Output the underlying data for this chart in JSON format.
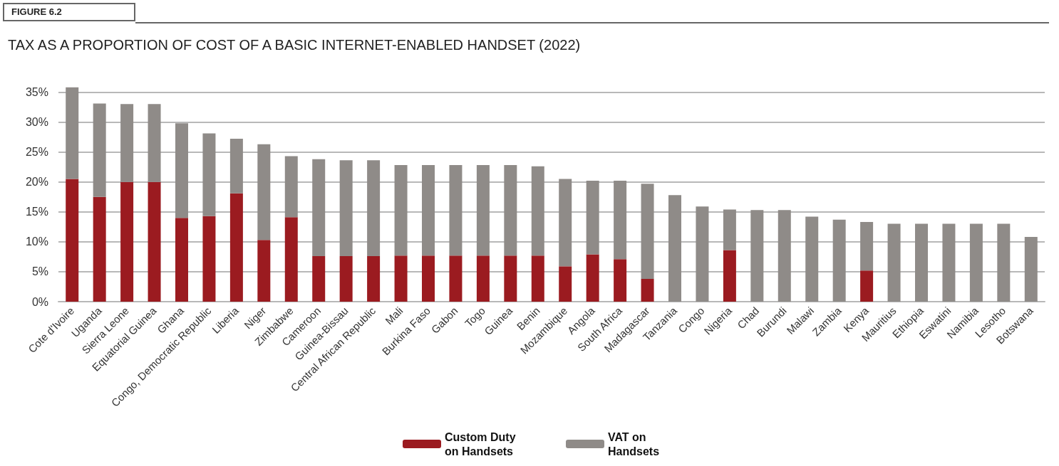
{
  "chart_data": {
    "type": "bar",
    "stacked": true,
    "title": "TAX AS A PROPORTION OF COST OF A BASIC INTERNET-ENABLED HANDSET (2022)",
    "annotations": [
      "FIGURE 6.2"
    ],
    "categories": [
      "Cote d'Ivoire",
      "Uganda",
      "Sierra Leone",
      "Equatorial Guinea",
      "Ghana",
      "Congo, Democratic Republic",
      "Liberia",
      "Niger",
      "Zimbabwe",
      "Cameroon",
      "Guinea-Bissau",
      "Central African Republic",
      "Mali",
      "Burkina Faso",
      "Gabon",
      "Togo",
      "Guinea",
      "Benin",
      "Mozambique",
      "Angola",
      "South Africa",
      "Madagascar",
      "Tanzania",
      "Congo",
      "Nigeria",
      "Chad",
      "Burundi",
      "Malawi",
      "Zambia",
      "Kenya",
      "Mauritius",
      "Ethiopia",
      "Eswatini",
      "Namibia",
      "Lesotho",
      "Botswana"
    ],
    "series": [
      {
        "name": "Custom Duty on Handsets",
        "color": "#9b1b20",
        "values": [
          20.5,
          17.5,
          20.0,
          20.0,
          14.0,
          14.3,
          18.1,
          10.3,
          14.1,
          7.6,
          7.6,
          7.6,
          7.7,
          7.7,
          7.7,
          7.7,
          7.7,
          7.7,
          5.9,
          7.9,
          7.1,
          3.8,
          0,
          0,
          8.6,
          0,
          0,
          0,
          0,
          5.2,
          0,
          0,
          0,
          0,
          0,
          0
        ]
      },
      {
        "name": "VAT on Handsets",
        "color": "#8f8b88",
        "values": [
          15.3,
          15.6,
          13.0,
          13.0,
          15.8,
          13.8,
          9.1,
          16.0,
          10.2,
          16.2,
          16.0,
          16.0,
          15.1,
          15.1,
          15.1,
          15.1,
          15.1,
          14.9,
          14.6,
          12.3,
          13.1,
          15.9,
          17.8,
          15.9,
          6.8,
          15.3,
          15.3,
          14.2,
          13.7,
          8.1,
          13.0,
          13.0,
          13.0,
          13.0,
          13.0,
          10.8
        ]
      }
    ],
    "ylim": [
      0,
      36
    ],
    "yticks": [
      {
        "value": 0,
        "label": "0%"
      },
      {
        "value": 5,
        "label": "5%"
      },
      {
        "value": 10,
        "label": "10%"
      },
      {
        "value": 15,
        "label": "15%"
      },
      {
        "value": 20,
        "label": "20%"
      },
      {
        "value": 25,
        "label": "25%"
      },
      {
        "value": 30,
        "label": "30%"
      },
      {
        "value": 35,
        "label": "35%"
      }
    ],
    "grid": "y",
    "legend": "bottom"
  }
}
